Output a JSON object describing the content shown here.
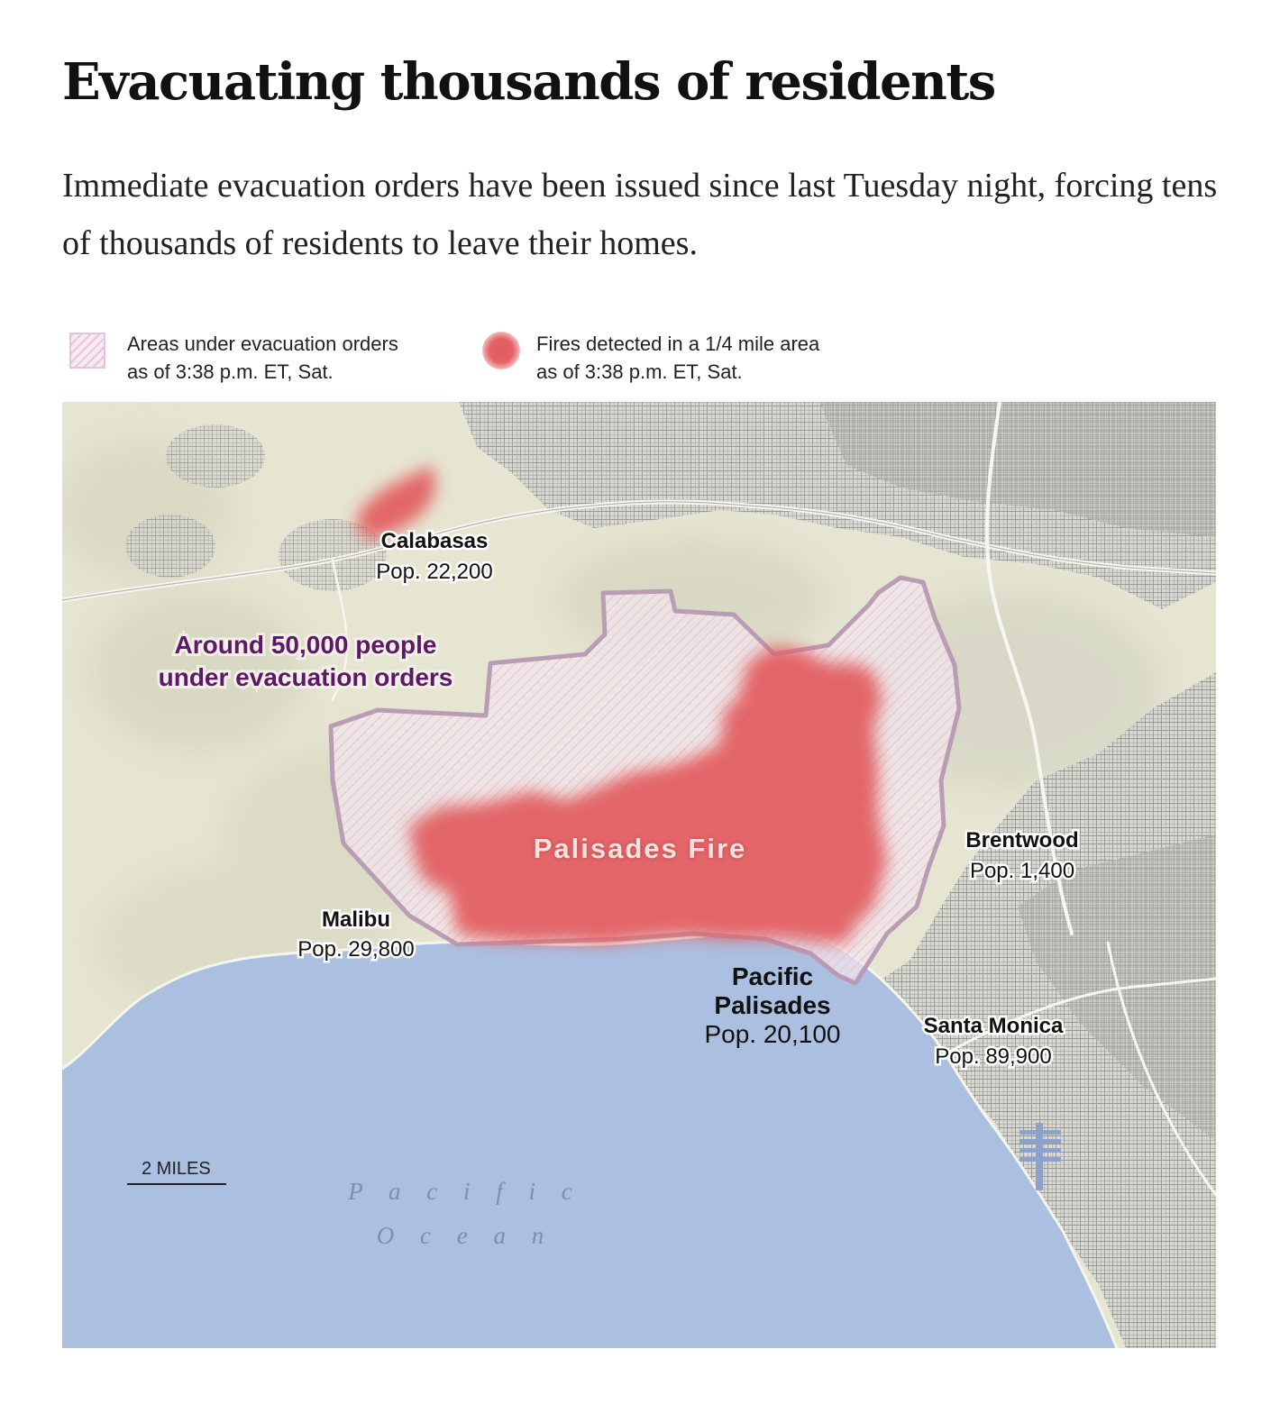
{
  "header": {
    "title": "Evacuating thousands of residents",
    "subtitle": "Immediate evacuation orders have been issued since last Tuesday night, forcing tens of thousands of residents to leave their homes."
  },
  "legend": {
    "evacuation": {
      "line1": "Areas under evacuation orders",
      "line2": "as of 3:38 p.m. ET, Sat."
    },
    "fires": {
      "line1": "Fires detected in a 1/4 mile area",
      "line2": "as of 3:38 p.m. ET, Sat."
    }
  },
  "map": {
    "evacuation_label_line1": "Around 50,000 people",
    "evacuation_label_line2": "under evacuation orders",
    "fire_label": "Palisades Fire",
    "ocean_line1": "P a c i f i c",
    "ocean_line2": "O c e a n",
    "scale_label": "2 MILES",
    "places": {
      "calabasas": {
        "name": "Calabasas",
        "pop": "Pop. 22,200"
      },
      "malibu": {
        "name": "Malibu",
        "pop": "Pop. 29,800"
      },
      "pacific_palisades": {
        "name_line1": "Pacific",
        "name_line2": "Palisades",
        "pop": "Pop. 20,100"
      },
      "brentwood": {
        "name": "Brentwood",
        "pop": "Pop. 1,400"
      },
      "santa_monica": {
        "name": "Santa Monica",
        "pop": "Pop. 89,900"
      }
    },
    "colors": {
      "land": "#e6e5d2",
      "urban": "#b9b9b4",
      "ocean": "#abbfe0",
      "evacuation_fill": "#f2e6ec",
      "evacuation_outline": "#b89ab4",
      "fire": "#e25c5e",
      "evacuation_label": "#5a1a66"
    }
  }
}
